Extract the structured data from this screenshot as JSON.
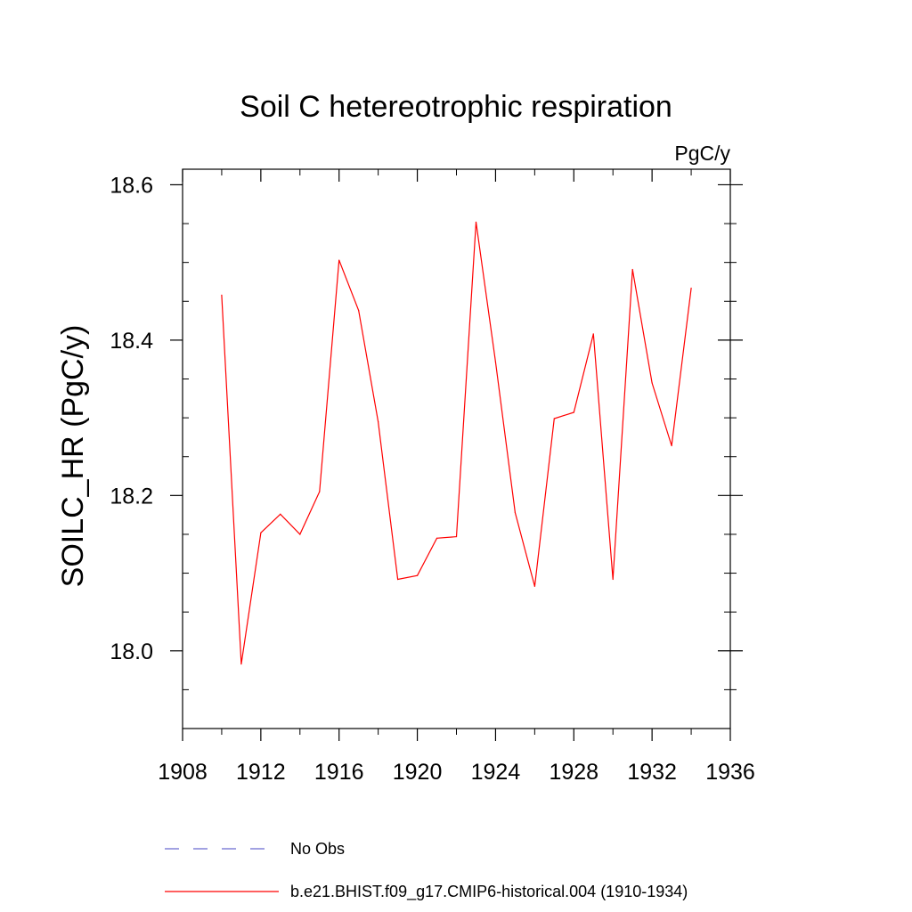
{
  "chart_data": {
    "type": "line",
    "title": "Soil C hetereotrophic respiration",
    "units_label": "PgC/y",
    "ylabel": "SOILC_HR  (PgC/y)",
    "xlabel": "",
    "xlim": [
      1908,
      1936
    ],
    "ylim": [
      17.9,
      18.62
    ],
    "x_major_ticks": [
      1908,
      1912,
      1916,
      1920,
      1924,
      1928,
      1932,
      1936
    ],
    "x_minor_ticks": [
      1910,
      1914,
      1918,
      1922,
      1926,
      1930,
      1934
    ],
    "y_major_ticks": [
      18.0,
      18.2,
      18.4,
      18.6
    ],
    "y_tick_labels": [
      "18.0",
      "18.2",
      "18.4",
      "18.6"
    ],
    "y_minor_ticks": [
      17.95,
      18.05,
      18.1,
      18.15,
      18.25,
      18.3,
      18.35,
      18.45,
      18.5,
      18.55
    ],
    "x_tick_labels": [
      "1908",
      "1912",
      "1916",
      "1920",
      "1924",
      "1928",
      "1932",
      "1936"
    ],
    "grid": false,
    "series": [
      {
        "name": "b.e21.BHIST.f09_g17.CMIP6-historical.004 (1910-1934)",
        "color": "#ff0000",
        "x": [
          1910,
          1911,
          1912,
          1913,
          1914,
          1915,
          1916,
          1917,
          1918,
          1919,
          1920,
          1921,
          1922,
          1923,
          1924,
          1925,
          1926,
          1927,
          1928,
          1929,
          1930,
          1931,
          1932,
          1933,
          1934
        ],
        "y": [
          18.458,
          17.983,
          18.152,
          18.176,
          18.15,
          18.205,
          18.503,
          18.438,
          18.295,
          18.092,
          18.097,
          18.145,
          18.147,
          18.552,
          18.372,
          18.178,
          18.083,
          18.299,
          18.307,
          18.408,
          18.092,
          18.491,
          18.345,
          18.264,
          18.467
        ]
      }
    ],
    "legend": [
      {
        "label": "No Obs",
        "color": "#6a6ad0",
        "style": "dashed"
      },
      {
        "label": "b.e21.BHIST.f09_g17.CMIP6-historical.004 (1910-1934)",
        "color": "#ff0000",
        "style": "solid"
      }
    ]
  }
}
